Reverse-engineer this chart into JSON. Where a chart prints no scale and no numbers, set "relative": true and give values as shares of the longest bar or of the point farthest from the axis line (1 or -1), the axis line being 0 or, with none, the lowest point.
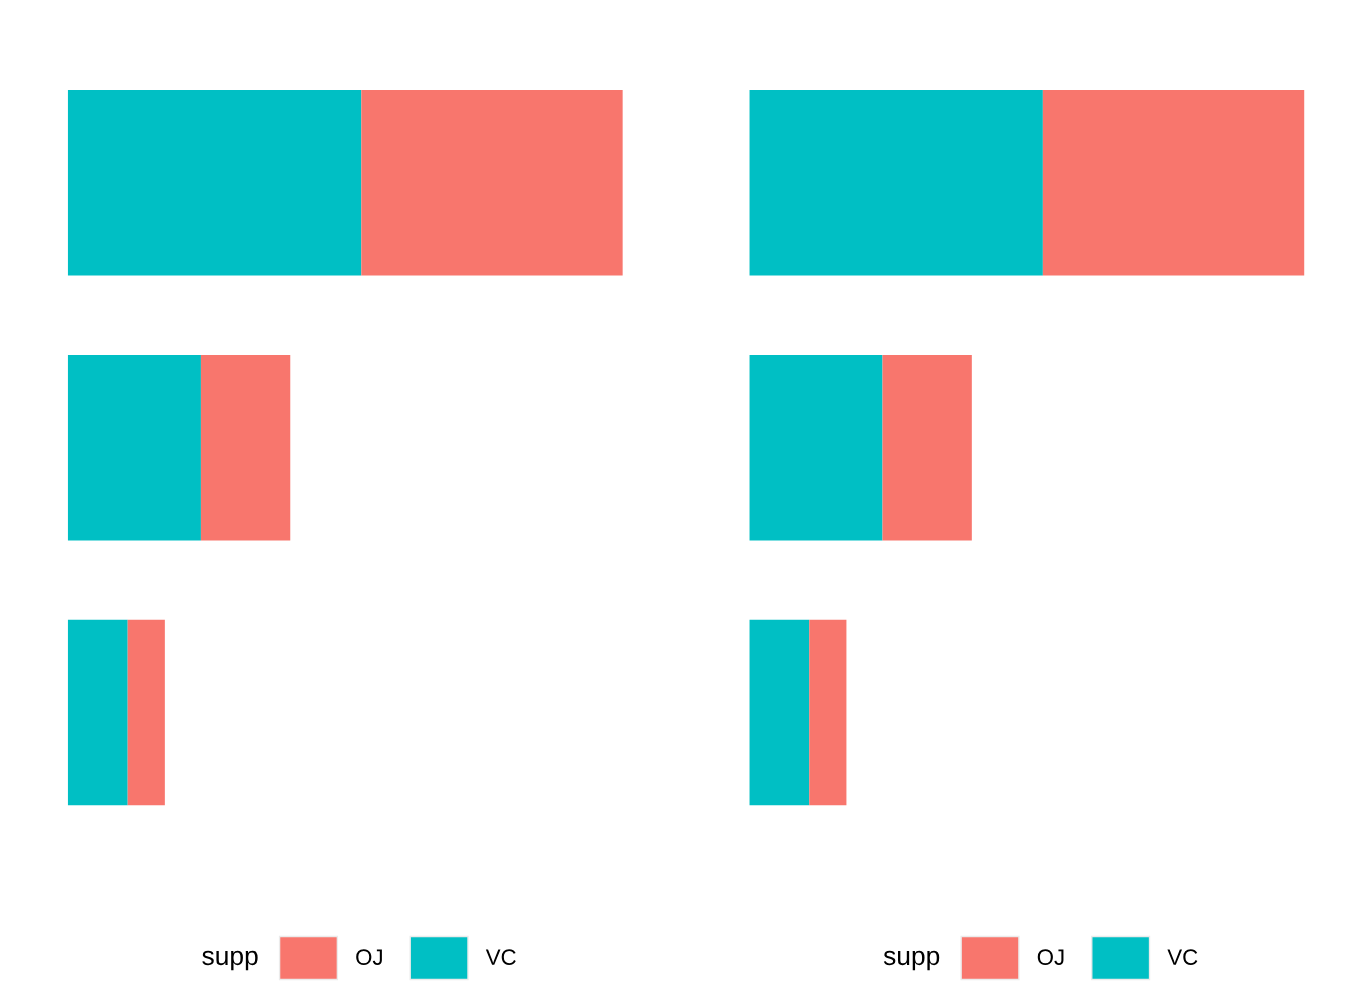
{
  "chart_data": [
    {
      "type": "bar",
      "orientation": "horizontal",
      "stacked": true,
      "relative": true,
      "categories": [
        null,
        null,
        null
      ],
      "legend_title": "supp",
      "legend": "bottom",
      "tick_labels": false,
      "series": [
        {
          "name": "VC",
          "color": "#00bfc4",
          "values": [
            0.529,
            0.24,
            0.108
          ]
        },
        {
          "name": "OJ",
          "color": "#f8766d",
          "values": [
            0.471,
            0.161,
            0.067
          ]
        }
      ]
    },
    {
      "type": "bar",
      "orientation": "horizontal",
      "stacked": true,
      "relative": true,
      "categories": [
        null,
        null,
        null
      ],
      "legend_title": "supp",
      "legend": "bottom",
      "tick_labels": false,
      "series": [
        {
          "name": "VC",
          "color": "#00bfc4",
          "values": [
            0.529,
            0.24,
            0.108
          ]
        },
        {
          "name": "OJ",
          "color": "#f8766d",
          "values": [
            0.471,
            0.161,
            0.067
          ]
        }
      ]
    }
  ]
}
